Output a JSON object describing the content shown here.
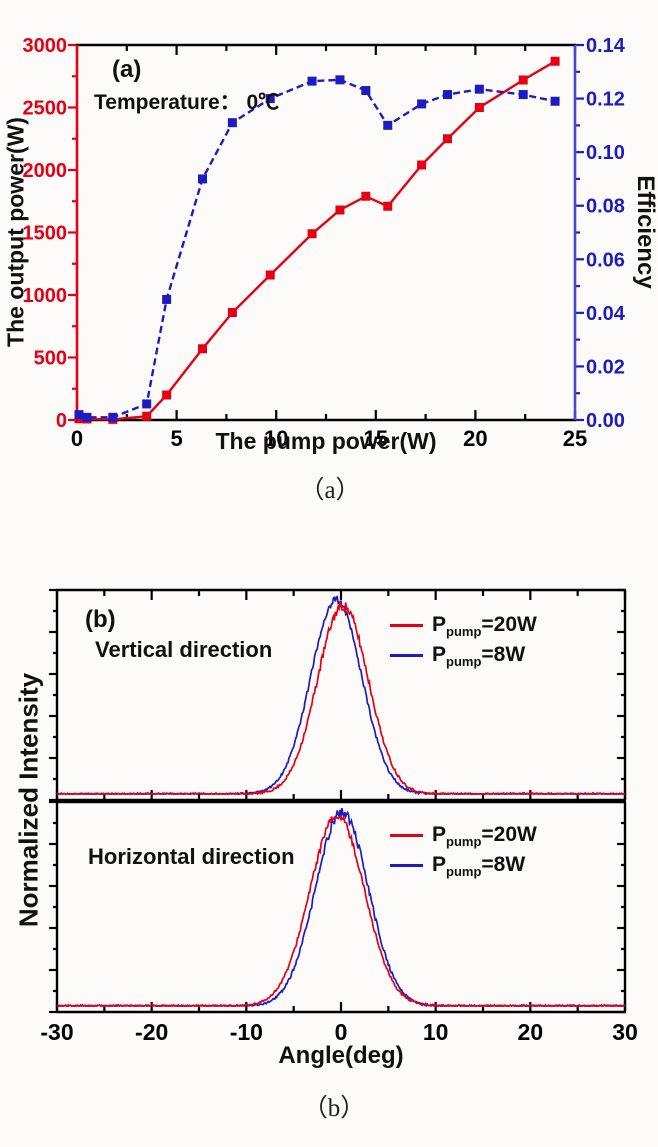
{
  "chart_data": [
    {
      "type": "line",
      "panel_label": "(a)",
      "annotation": "Temperature： 0℃",
      "caption": "（a）",
      "xlabel": "The pump power(W)",
      "ylabel_left": "The output power(W)",
      "ylabel_right": "Efficiency",
      "x_range": [
        0,
        25
      ],
      "x_major_step": 5,
      "x_minor_step": 2.5,
      "y_left_range": [
        0,
        3000
      ],
      "y_left_major_step": 500,
      "y_left_minor_step": 250,
      "y_right_range": [
        0,
        0.14
      ],
      "y_right_major_step": 0.02,
      "y_right_minor_step": 0.01,
      "grid": false,
      "axis_colors": {
        "frame": "#000000",
        "left_line": "#e60014",
        "right_line": "#4a4ac8"
      },
      "x": [
        0.1,
        0.5,
        1.8,
        3.5,
        4.5,
        6.3,
        7.8,
        9.7,
        11.8,
        13.2,
        14.5,
        15.6,
        17.3,
        18.6,
        20.2,
        22.4,
        24.0
      ],
      "series": [
        {
          "name": "output power",
          "axis": "left",
          "color": "#e60014",
          "line_style": "solid",
          "marker": "square",
          "values": [
            10,
            8,
            5,
            30,
            200,
            570,
            860,
            1160,
            1490,
            1680,
            1790,
            1710,
            2040,
            2250,
            2500,
            2720,
            2870
          ]
        },
        {
          "name": "efficiency",
          "axis": "right",
          "color": "#1c1cc0",
          "line_style": "dashed",
          "marker": "square",
          "values": [
            0.002,
            0.001,
            0.001,
            0.006,
            0.045,
            0.09,
            0.111,
            0.12,
            0.1265,
            0.127,
            0.123,
            0.11,
            0.118,
            0.1215,
            0.1235,
            0.1215,
            0.119
          ]
        }
      ]
    },
    {
      "type": "line",
      "panel_label": "(b)",
      "caption": "（b）",
      "xlabel": "Angle(deg)",
      "ylabel": "Normalized Intensity",
      "x_range": [
        -30,
        30
      ],
      "x_major_step": 10,
      "x_minor_step": 5,
      "grid": false,
      "panels": [
        {
          "label": "Vertical direction",
          "curves": [
            {
              "name": "Ppump=8W",
              "color": "#1c1cc0",
              "center": -0.5,
              "sigma": 2.7,
              "amplitude": 1.0,
              "noise": 0.014,
              "seed": 22
            },
            {
              "name": "Ppump=20W",
              "color": "#e60014",
              "center": 0.2,
              "sigma": 2.7,
              "amplitude": 0.97,
              "noise": 0.022,
              "seed": 11
            }
          ]
        },
        {
          "label": "Horizontal direction",
          "curves": [
            {
              "name": "Ppump=8W",
              "color": "#1c1cc0",
              "center": 0.1,
              "sigma": 2.8,
              "amplitude": 1.0,
              "noise": 0.02,
              "seed": 44
            },
            {
              "name": "Ppump=20W",
              "color": "#e60014",
              "center": -0.4,
              "sigma": 2.9,
              "amplitude": 0.98,
              "noise": 0.015,
              "seed": 33
            }
          ]
        }
      ],
      "legend": {
        "p": "P",
        "sub": "pump",
        "position": "upper right",
        "entries": [
          {
            "value": "=20W",
            "color": "#e60014"
          },
          {
            "value": "=8W",
            "color": "#1c1cc0"
          }
        ]
      }
    }
  ]
}
